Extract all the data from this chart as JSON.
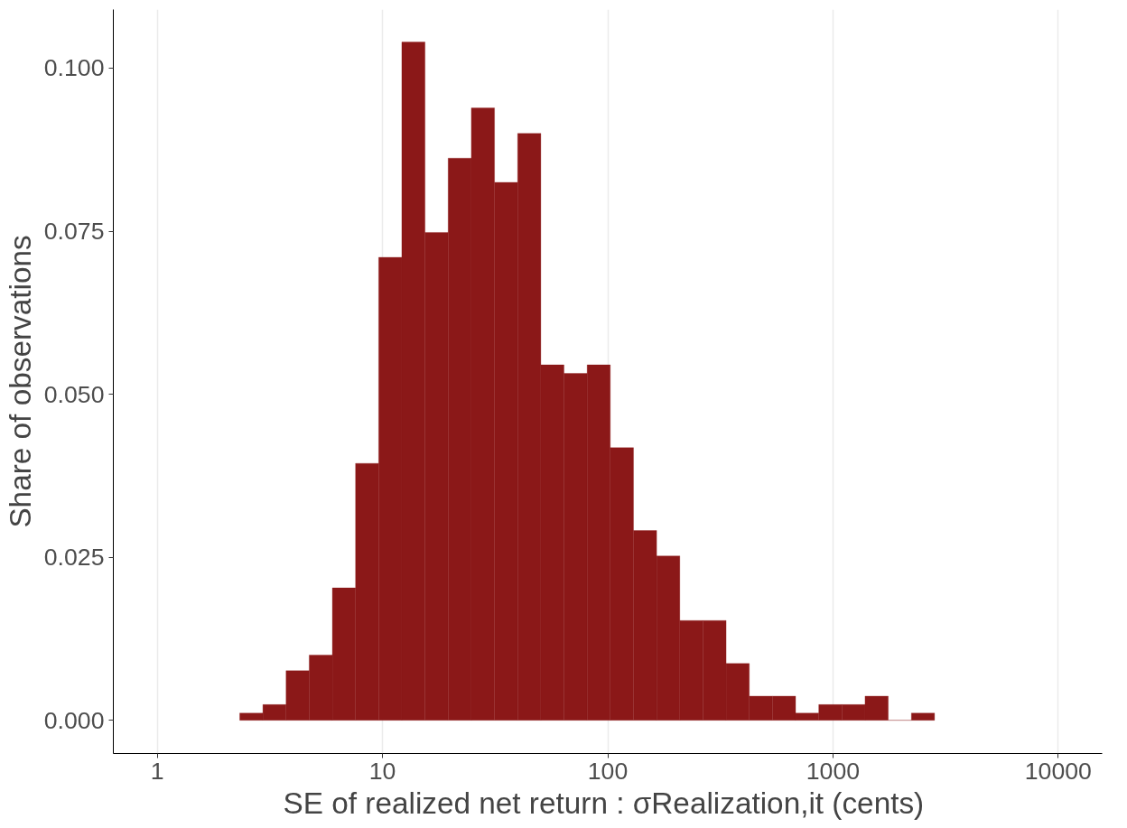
{
  "chart_data": {
    "type": "histogram",
    "xlabel": "SE of realized net return : σRealization,it  (cents)",
    "ylabel": "Share of observations",
    "color": "#8b1818",
    "bins": [
      2.323,
      2.943,
      3.73,
      4.726,
      5.989,
      7.59,
      9.616,
      12.18,
      15.44,
      19.56,
      24.79,
      31.42,
      39.81,
      50.45,
      63.92,
      81.0,
      102.6,
      130.1,
      164.8,
      208.9,
      264.6,
      335.3,
      425.0,
      538.4,
      682.3,
      864.7,
      1095.6,
      1388,
      1759,
      2229,
      2824
    ],
    "values": [
      0.0011,
      0.0024,
      0.0076,
      0.01,
      0.0203,
      0.0394,
      0.071,
      0.104,
      0.0748,
      0.0862,
      0.0939,
      0.0825,
      0.09,
      0.0545,
      0.0532,
      0.0545,
      0.0418,
      0.0291,
      0.0252,
      0.0153,
      0.0153,
      0.0087,
      0.0037,
      0.0037,
      0.0011,
      0.0024,
      0.0024,
      0.0037,
      0,
      0.0011
    ],
    "log": "x",
    "xlim": [
      0.638,
      15670
    ],
    "ylim": [
      -0.0051,
      0.109
    ],
    "xticks": [
      1,
      10,
      100,
      1000,
      10000
    ],
    "yticks": [
      {
        "value": 0,
        "label": "0.000"
      },
      {
        "value": 0.025,
        "label": "0.025"
      },
      {
        "value": 0.05,
        "label": "0.050"
      },
      {
        "value": 0.075,
        "label": "0.075"
      },
      {
        "value": 0.1,
        "label": "0.100"
      }
    ],
    "grid": "x"
  }
}
